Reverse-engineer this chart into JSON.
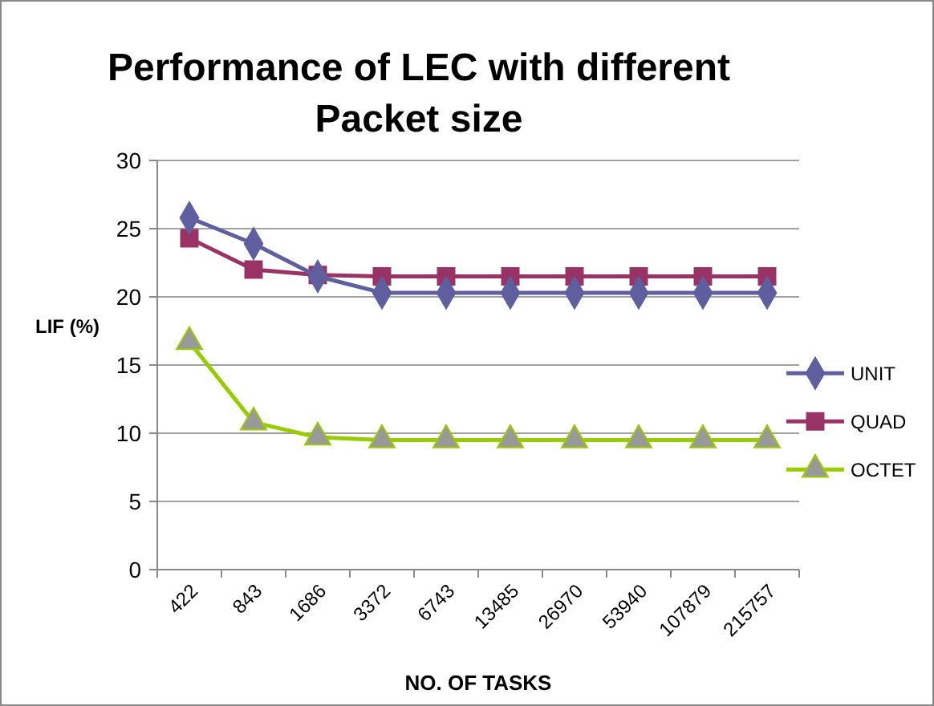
{
  "chart_data": {
    "type": "line",
    "title": "Performance of LEC with different Packet size",
    "xlabel": "NO. OF  TASKS",
    "ylabel": "LIF (%)",
    "categories": [
      "422",
      "843",
      "1686",
      "3372",
      "6743",
      "13485",
      "26970",
      "53940",
      "107879",
      "215757"
    ],
    "series": [
      {
        "name": "UNIT",
        "color": "#5f5f9f",
        "marker": "diamond",
        "values": [
          25.8,
          23.9,
          21.5,
          20.3,
          20.3,
          20.3,
          20.3,
          20.3,
          20.3,
          20.3
        ]
      },
      {
        "name": "QUAD",
        "color": "#993366",
        "marker": "square",
        "values": [
          24.3,
          22,
          21.6,
          21.5,
          21.5,
          21.5,
          21.5,
          21.5,
          21.5,
          21.5
        ]
      },
      {
        "name": "OCTET",
        "color": "#99cc00",
        "marker": "triangle",
        "values": [
          16.7,
          10.8,
          9.7,
          9.5,
          9.5,
          9.5,
          9.5,
          9.5,
          9.5,
          9.5
        ]
      }
    ],
    "ylim": [
      0,
      30
    ],
    "yticks": [
      0,
      5,
      10,
      15,
      20,
      25,
      30
    ],
    "grid": "y",
    "legend": "right"
  }
}
